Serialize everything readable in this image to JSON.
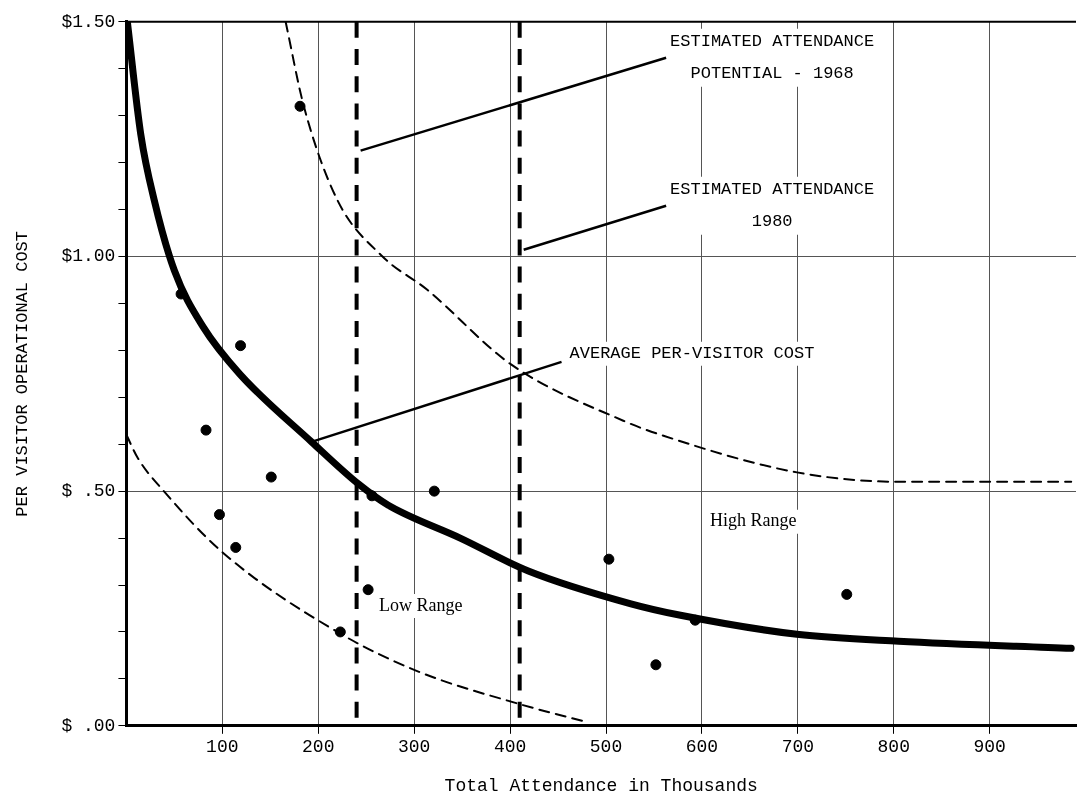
{
  "chart_data": {
    "type": "scatter",
    "xlabel": "Total Attendance in Thousands",
    "ylabel": "PER VISITOR OPERATIONAL COST",
    "xlim": [
      0,
      990
    ],
    "xticks": [
      100,
      200,
      300,
      400,
      500,
      600,
      700,
      800,
      900
    ],
    "ylim": [
      0,
      1.5
    ],
    "yticks": [
      {
        "value": 0,
        "label": "$ .00"
      },
      {
        "value": 0.1,
        "label": null
      },
      {
        "value": 0.2,
        "label": null
      },
      {
        "value": 0.3,
        "label": null
      },
      {
        "value": 0.4,
        "label": null
      },
      {
        "value": 0.5,
        "label": "$ .50"
      },
      {
        "value": 0.6,
        "label": null
      },
      {
        "value": 0.7,
        "label": null
      },
      {
        "value": 0.8,
        "label": null
      },
      {
        "value": 0.9,
        "label": null
      },
      {
        "value": 1.0,
        "label": "$1.00"
      },
      {
        "value": 1.1,
        "label": null
      },
      {
        "value": 1.2,
        "label": null
      },
      {
        "value": 1.3,
        "label": null
      },
      {
        "value": 1.4,
        "label": null
      },
      {
        "value": 1.5,
        "label": "$1.50"
      }
    ],
    "grid": true,
    "legend": false,
    "series": [
      {
        "color": "#000000",
        "marker": "circle",
        "x": [
          181,
          57,
          119,
          83,
          151,
          97,
          114,
          321,
          256,
          252,
          223,
          503,
          552,
          751,
          593
        ],
        "values": [
          1.32,
          0.92,
          0.81,
          0.63,
          0.53,
          0.45,
          0.38,
          0.5,
          0.49,
          0.29,
          0.2,
          0.355,
          0.13,
          0.28,
          0.225
        ]
      },
      {
        "type": "line",
        "color": "#000000",
        "line_style": "solid",
        "x": [
          1,
          15,
          29,
          50,
          80,
          118,
          193,
          242,
          273,
          348,
          419,
          526,
          579,
          699,
          805,
          985
        ],
        "values": [
          1.5,
          1.26,
          1.12,
          0.97,
          0.85,
          0.75,
          0.605,
          0.515,
          0.47,
          0.4,
          0.33,
          0.26,
          0.235,
          0.195,
          0.18,
          0.165
        ]
      },
      {
        "type": "line",
        "color": "#000000",
        "line_style": "dashed",
        "x": [
          166,
          185,
          220,
          267,
          313,
          401,
          518,
          557,
          699,
          805,
          985
        ],
        "values": [
          1.5,
          1.32,
          1.12,
          1.0,
          0.93,
          0.77,
          0.65,
          0.62,
          0.54,
          0.52,
          0.52
        ]
      },
      {
        "type": "line",
        "color": "#000000",
        "line_style": "dashed",
        "x": [
          0,
          12,
          39,
          100,
          220,
          305,
          412,
          476
        ],
        "values": [
          0.62,
          0.57,
          0.5,
          0.37,
          0.2,
          0.115,
          0.045,
          0.01
        ]
      }
    ],
    "ref_lines": [
      {
        "axis": "x",
        "value": 240,
        "label": "ESTIMATED ATTENDANCE POTENTIAL - 1968",
        "line_style": "dashed",
        "color": "#000000"
      },
      {
        "axis": "x",
        "value": 410,
        "label": "ESTIMATED ATTENDANCE 1980",
        "line_style": "dashed",
        "color": "#000000"
      }
    ],
    "annotations": [
      {
        "text": "AVERAGE PER-VISITOR COST",
        "x": 193,
        "y": 0.605
      },
      "Low Range",
      "High Range"
    ]
  }
}
